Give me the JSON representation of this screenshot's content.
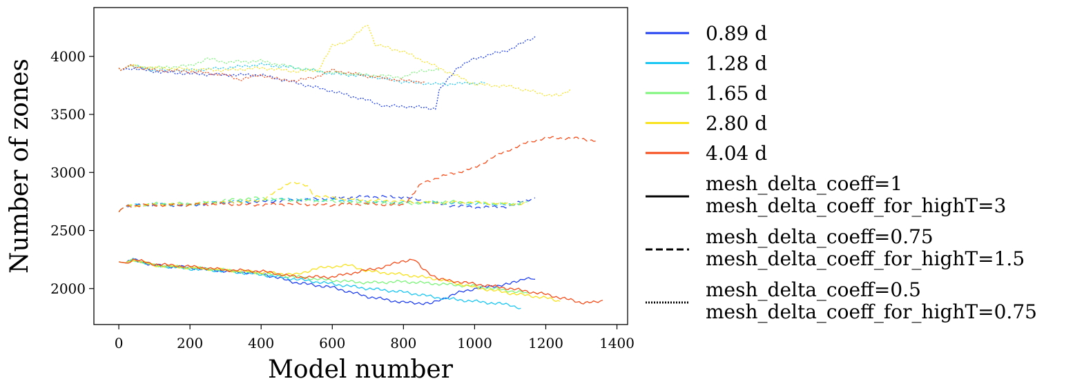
{
  "chart_data": {
    "type": "line",
    "title": "",
    "xlabel": "Model number",
    "ylabel": "Number of zones",
    "xlim": [
      -70,
      1430
    ],
    "ylim": [
      1690,
      4420
    ],
    "xticks": [
      0,
      200,
      400,
      600,
      800,
      1000,
      1200,
      1400
    ],
    "yticks": [
      2000,
      2500,
      3000,
      3500,
      4000
    ],
    "grid": false,
    "legend_placement": "outside-right",
    "legend": {
      "colors": [
        {
          "label": "0.89 d",
          "color": "#1f3ff0"
        },
        {
          "label": "1.28 d",
          "color": "#17c6f2"
        },
        {
          "label": "1.65 d",
          "color": "#7cf57a"
        },
        {
          "label": "2.80 d",
          "color": "#f7e21b"
        },
        {
          "label": "4.04 d",
          "color": "#f64b18"
        }
      ],
      "styles": [
        {
          "label_line1": "mesh_delta_coeff=1",
          "label_line2": "mesh_delta_coeff_for_highT=3",
          "dash": "solid"
        },
        {
          "label_line1": "mesh_delta_coeff=0.75",
          "label_line2": "mesh_delta_coeff_for_highT=1.5",
          "dash": "dashed"
        },
        {
          "label_line1": "mesh_delta_coeff=0.5",
          "label_line2": "mesh_delta_coeff_for_highT=0.75",
          "dash": "dotted"
        }
      ]
    },
    "series": [
      {
        "color": "#1f3ff0",
        "style": "solid",
        "x": [
          0,
          20,
          40,
          100,
          200,
          300,
          400,
          500,
          600,
          700,
          800,
          850,
          880,
          900,
          950,
          1000,
          1100,
          1140,
          1170
        ],
        "y": [
          2230,
          2220,
          2250,
          2200,
          2180,
          2150,
          2130,
          2050,
          2010,
          1930,
          1880,
          1875,
          1870,
          1900,
          1960,
          2000,
          2040,
          2090,
          2080
        ]
      },
      {
        "color": "#17c6f2",
        "style": "solid",
        "x": [
          0,
          20,
          40,
          100,
          200,
          300,
          400,
          500,
          600,
          700,
          800,
          900,
          1000,
          1100,
          1130
        ],
        "y": [
          2230,
          2220,
          2250,
          2200,
          2170,
          2150,
          2120,
          2080,
          2040,
          2000,
          1970,
          1920,
          1890,
          1860,
          1830
        ]
      },
      {
        "color": "#7cf57a",
        "style": "solid",
        "x": [
          0,
          20,
          40,
          100,
          200,
          300,
          400,
          500,
          600,
          700,
          800,
          900,
          1000,
          1100,
          1150
        ],
        "y": [
          2230,
          2220,
          2250,
          2200,
          2180,
          2160,
          2130,
          2100,
          2070,
          2050,
          2060,
          2040,
          2020,
          1980,
          1960
        ]
      },
      {
        "color": "#f7e21b",
        "style": "solid",
        "x": [
          0,
          20,
          40,
          100,
          200,
          300,
          400,
          500,
          550,
          600,
          650,
          700,
          800,
          900,
          1000,
          1100,
          1200,
          1240
        ],
        "y": [
          2230,
          2220,
          2250,
          2200,
          2180,
          2160,
          2140,
          2120,
          2170,
          2190,
          2200,
          2150,
          2120,
          2080,
          2010,
          1960,
          1920,
          1890
        ]
      },
      {
        "color": "#f64b18",
        "style": "solid",
        "x": [
          0,
          20,
          40,
          100,
          200,
          300,
          400,
          500,
          600,
          700,
          750,
          800,
          830,
          850,
          900,
          1000,
          1100,
          1200,
          1300,
          1340,
          1360
        ],
        "y": [
          2230,
          2220,
          2250,
          2210,
          2190,
          2160,
          2150,
          2100,
          2100,
          2160,
          2190,
          2240,
          2250,
          2180,
          2080,
          2040,
          2000,
          1950,
          1880,
          1880,
          1900
        ]
      },
      {
        "color": "#1f3ff0",
        "style": "dashed",
        "x": [
          0,
          5,
          20,
          100,
          200,
          300,
          400,
          500,
          600,
          700,
          800,
          850,
          900,
          950,
          1000,
          1050,
          1100,
          1140,
          1170
        ],
        "y": [
          2660,
          2680,
          2710,
          2720,
          2720,
          2740,
          2750,
          2760,
          2780,
          2790,
          2790,
          2760,
          2730,
          2710,
          2700,
          2700,
          2710,
          2760,
          2780
        ]
      },
      {
        "color": "#17c6f2",
        "style": "dashed",
        "x": [
          0,
          5,
          20,
          100,
          200,
          300,
          400,
          500,
          600,
          700,
          800,
          900,
          1000,
          1100,
          1130
        ],
        "y": [
          2660,
          2680,
          2710,
          2730,
          2720,
          2750,
          2760,
          2770,
          2760,
          2750,
          2740,
          2740,
          2730,
          2720,
          2730
        ]
      },
      {
        "color": "#7cf57a",
        "style": "dashed",
        "x": [
          0,
          5,
          20,
          100,
          200,
          300,
          400,
          500,
          600,
          700,
          800,
          900,
          1000,
          1100,
          1150
        ],
        "y": [
          2660,
          2680,
          2710,
          2730,
          2730,
          2760,
          2780,
          2760,
          2750,
          2740,
          2730,
          2750,
          2740,
          2730,
          2750
        ]
      },
      {
        "color": "#f7e21b",
        "style": "dashed",
        "x": [
          0,
          5,
          20,
          100,
          200,
          300,
          400,
          450,
          480,
          500,
          530,
          550,
          600,
          700,
          800,
          900,
          1000,
          1100,
          1150
        ],
        "y": [
          2660,
          2680,
          2710,
          2720,
          2730,
          2740,
          2760,
          2850,
          2920,
          2910,
          2880,
          2800,
          2780,
          2760,
          2750,
          2740,
          2740,
          2730,
          2730
        ]
      },
      {
        "color": "#f64b18",
        "style": "dashed",
        "x": [
          0,
          5,
          20,
          100,
          200,
          300,
          400,
          500,
          600,
          700,
          800,
          850,
          900,
          1000,
          1050,
          1100,
          1150,
          1200,
          1300,
          1340
        ],
        "y": [
          2660,
          2680,
          2710,
          2720,
          2720,
          2730,
          2720,
          2730,
          2720,
          2730,
          2720,
          2900,
          2960,
          3040,
          3130,
          3200,
          3260,
          3300,
          3290,
          3270
        ]
      },
      {
        "color": "#1f3ff0",
        "style": "dotted",
        "x": [
          0,
          5,
          30,
          100,
          200,
          300,
          400,
          500,
          600,
          700,
          750,
          800,
          850,
          890,
          900,
          950,
          1000,
          1100,
          1150,
          1170
        ],
        "y": [
          3900,
          3880,
          3900,
          3870,
          3850,
          3840,
          3840,
          3770,
          3700,
          3620,
          3570,
          3570,
          3560,
          3550,
          3700,
          3900,
          3980,
          4060,
          4140,
          4170
        ]
      },
      {
        "color": "#17c6f2",
        "style": "dotted",
        "x": [
          0,
          5,
          30,
          100,
          200,
          300,
          400,
          500,
          600,
          700,
          800,
          900,
          1000,
          1030
        ],
        "y": [
          3900,
          3880,
          3920,
          3880,
          3880,
          3900,
          3930,
          3900,
          3850,
          3830,
          3780,
          3760,
          3770,
          3770
        ]
      },
      {
        "color": "#7cf57a",
        "style": "dotted",
        "x": [
          0,
          5,
          30,
          100,
          200,
          250,
          300,
          400,
          500,
          600,
          700,
          800,
          850,
          900
        ],
        "y": [
          3900,
          3880,
          3920,
          3900,
          3920,
          3980,
          3950,
          3960,
          3900,
          3860,
          3840,
          3820,
          3880,
          3880
        ]
      },
      {
        "color": "#f7e21b",
        "style": "dotted",
        "x": [
          0,
          5,
          30,
          100,
          200,
          300,
          400,
          500,
          560,
          600,
          650,
          700,
          720,
          750,
          800,
          900,
          1000,
          1100,
          1200,
          1240,
          1270
        ],
        "y": [
          3900,
          3880,
          3920,
          3900,
          3890,
          3880,
          3900,
          3870,
          3880,
          4090,
          4140,
          4280,
          4100,
          4080,
          4040,
          3900,
          3760,
          3740,
          3670,
          3660,
          3720
        ]
      },
      {
        "color": "#f64b18",
        "style": "dotted",
        "x": [
          0,
          5,
          30,
          100,
          200,
          300,
          340,
          400,
          450,
          500,
          550,
          600,
          700,
          800,
          860
        ],
        "y": [
          3900,
          3880,
          3920,
          3880,
          3870,
          3840,
          3800,
          3840,
          3800,
          3790,
          3820,
          3880,
          3830,
          3790,
          3780
        ]
      }
    ]
  }
}
